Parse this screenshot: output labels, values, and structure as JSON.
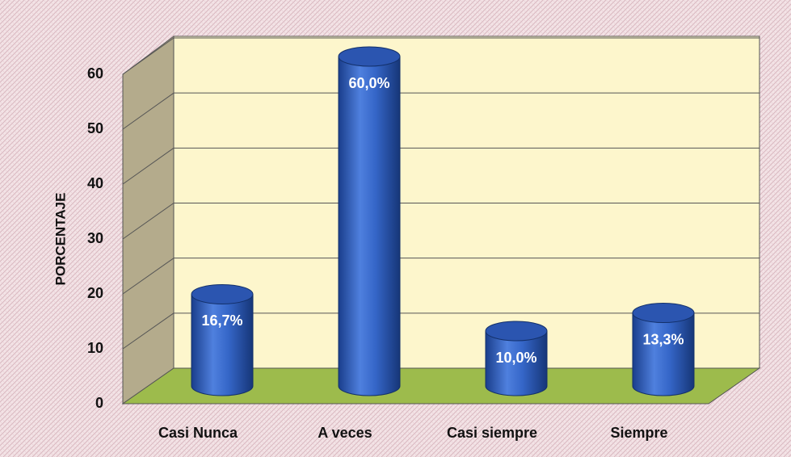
{
  "chart_data": {
    "type": "bar3d",
    "y_label": "PORCENTAJE",
    "categories": [
      "Casi Nunca",
      "A veces",
      "Casi siempre",
      "Siempre"
    ],
    "values": [
      16.7,
      60,
      10,
      13.3
    ],
    "value_labels": [
      "16,7%",
      "60,0%",
      "10,0%",
      "13,3%"
    ],
    "color": "#2e5fc4",
    "ylim": [
      0,
      60
    ],
    "yticks": [
      0,
      10,
      20,
      30,
      40,
      50,
      60
    ],
    "grid": true
  }
}
